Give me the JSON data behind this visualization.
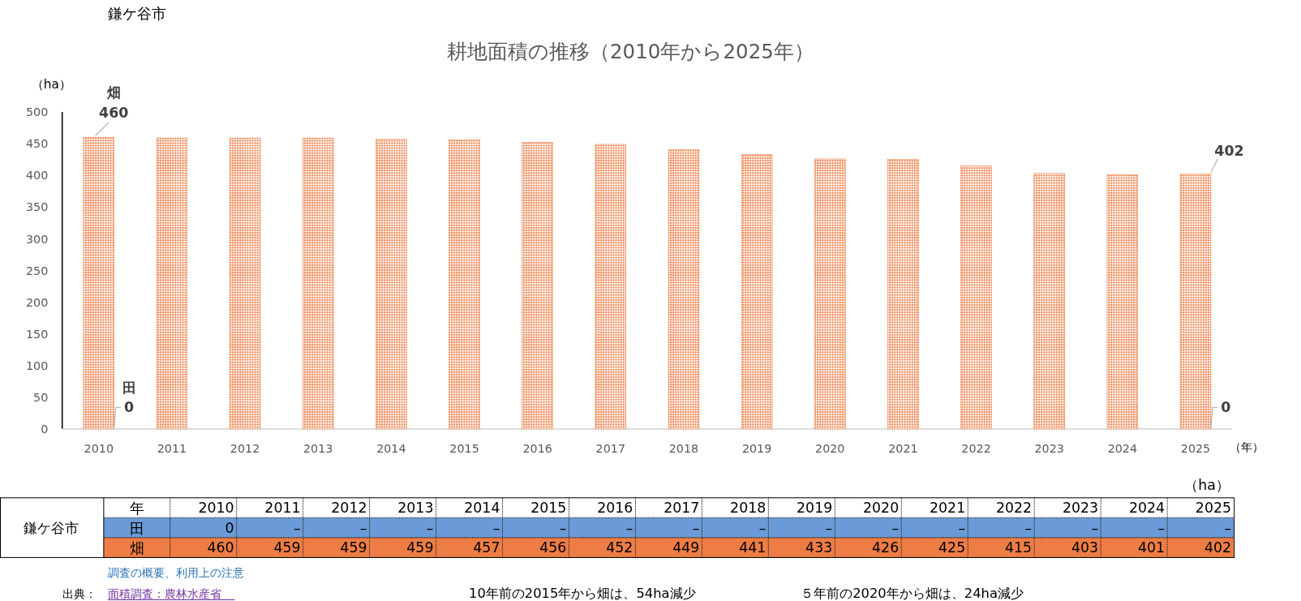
{
  "chart_data": [
    {
      "type": "bar",
      "title": "耕地面積の推移（2010年から2025年）",
      "subtitle": "鎌ケ谷市",
      "ylabel": "（ha）",
      "xlabel": "（年）",
      "categories": [
        "2010",
        "2011",
        "2012",
        "2013",
        "2014",
        "2015",
        "2016",
        "2017",
        "2018",
        "2019",
        "2020",
        "2021",
        "2022",
        "2023",
        "2024",
        "2025"
      ],
      "annotations": [
        {
          "text": "田",
          "x": "2010",
          "y": 0
        },
        {
          "text": "0",
          "x": "2010",
          "y": 0
        },
        {
          "text": "0",
          "x": "2025",
          "y": 0
        }
      ],
      "series": [
        {
          "name": "畑",
          "color": "#ee7d45",
          "values": [
            460,
            459,
            459,
            459,
            457,
            456,
            452,
            449,
            441,
            433,
            426,
            425,
            415,
            403,
            401,
            402
          ],
          "value_labels": [
            "460",
            null,
            null,
            null,
            null,
            null,
            null,
            null,
            null,
            null,
            null,
            null,
            null,
            null,
            null,
            "402"
          ]
        }
      ],
      "ylim": [
        0,
        500
      ],
      "yticks": [
        0,
        50,
        100,
        150,
        200,
        250,
        300,
        350,
        400,
        450,
        500
      ]
    },
    {
      "type": "heatmap",
      "xlabel": "年",
      "ylabel": "鎌ケ谷市",
      "categories": [
        "2010",
        "2011",
        "2012",
        "2013",
        "2014",
        "2015",
        "2016",
        "2017",
        "2018",
        "2019",
        "2020",
        "2021",
        "2022",
        "2023",
        "2024",
        "2025"
      ],
      "y_categories": [
        "田",
        "畑"
      ],
      "colors": [
        "#6a9bd8",
        "#ee7d45"
      ],
      "cells": [
        [
          0,
          null,
          null,
          null,
          null,
          null,
          null,
          null,
          null,
          null,
          null,
          null,
          null,
          null,
          null,
          null
        ],
        [
          460,
          459,
          459,
          459,
          457,
          456,
          452,
          449,
          441,
          433,
          426,
          425,
          415,
          403,
          401,
          402
        ]
      ],
      "cell_labels": [
        [
          "0",
          "–",
          "–",
          "–",
          "–",
          "–",
          "–",
          "–",
          "–",
          "–",
          "–",
          "–",
          "–",
          "–",
          "–",
          "–"
        ],
        [
          "460",
          "459",
          "459",
          "459",
          "457",
          "456",
          "452",
          "449",
          "441",
          "433",
          "426",
          "425",
          "415",
          "403",
          "401",
          "402"
        ]
      ],
      "annotations": [
        "（ha）",
        "調査の概要、利用上の注意",
        "出典：",
        "面積調査：農林水産省",
        "10年前の2015年から畑は、54ha減少",
        "５年前の2020年から畑は、24ha減少"
      ]
    }
  ]
}
